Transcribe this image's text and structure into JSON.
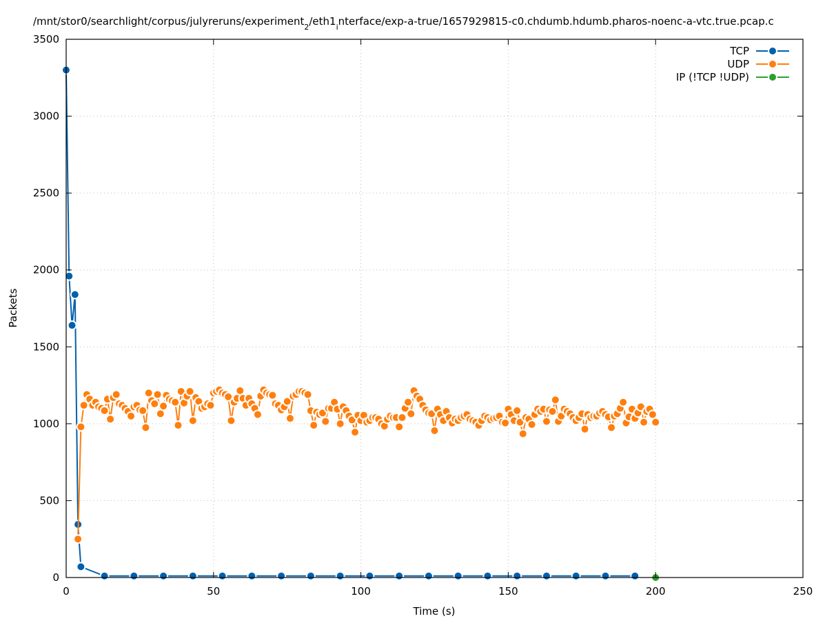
{
  "chart_data": {
    "type": "line",
    "title": "/mnt/stor0/searchlight/corpus/julyreruns/experiment_2/eth1_interface/exp-a-true/1657929815-c0.chdumb.hdumb.pharos-noenc-a-vtc.true.pcap.c",
    "xlabel": "Time (s)",
    "ylabel": "Packets",
    "xlim": [
      0,
      250
    ],
    "ylim": [
      0,
      3500
    ],
    "xticks": [
      0,
      50,
      100,
      150,
      200,
      250
    ],
    "yticks": [
      0,
      500,
      1000,
      1500,
      2000,
      2500,
      3000,
      3500
    ],
    "grid": true,
    "legend_position": "top-right",
    "series": [
      {
        "name": "TCP",
        "color": "#0060ad",
        "x": [
          0,
          1,
          2,
          3,
          4,
          5,
          13,
          23,
          33,
          43,
          53,
          63,
          73,
          83,
          93,
          103,
          113,
          123,
          133,
          143,
          153,
          163,
          173,
          183,
          193
        ],
        "y": [
          3300,
          1960,
          1640,
          1840,
          345,
          70,
          10,
          10,
          10,
          10,
          10,
          10,
          10,
          10,
          10,
          10,
          10,
          10,
          10,
          10,
          10,
          10,
          10,
          10,
          10
        ]
      },
      {
        "name": "UDP",
        "color": "#ff7f0e",
        "x_start": 4,
        "x_step": 1,
        "y": [
          250,
          980,
          1120,
          1190,
          1160,
          1120,
          1140,
          1110,
          1100,
          1085,
          1160,
          1030,
          1170,
          1190,
          1130,
          1120,
          1100,
          1080,
          1050,
          1110,
          1120,
          1090,
          1085,
          975,
          1200,
          1150,
          1130,
          1190,
          1065,
          1115,
          1185,
          1160,
          1150,
          1140,
          990,
          1210,
          1135,
          1180,
          1210,
          1020,
          1170,
          1145,
          1100,
          1110,
          1130,
          1120,
          1200,
          1210,
          1220,
          1200,
          1190,
          1175,
          1020,
          1140,
          1165,
          1215,
          1165,
          1120,
          1165,
          1130,
          1100,
          1060,
          1180,
          1220,
          1200,
          1190,
          1185,
          1130,
          1120,
          1090,
          1110,
          1145,
          1035,
          1180,
          1190,
          1210,
          1210,
          1200,
          1190,
          1085,
          990,
          1075,
          1060,
          1070,
          1015,
          1100,
          1100,
          1140,
          1095,
          1000,
          1110,
          1085,
          1050,
          1025,
          945,
          1055,
          1020,
          1055,
          1010,
          1020,
          1040,
          1040,
          1030,
          1000,
          985,
          1030,
          1050,
          1040,
          1040,
          980,
          1040,
          1100,
          1140,
          1065,
          1215,
          1180,
          1160,
          1120,
          1090,
          1070,
          1065,
          955,
          1095,
          1060,
          1020,
          1080,
          1040,
          1005,
          1030,
          1020,
          1040,
          1050,
          1060,
          1030,
          1020,
          1010,
          990,
          1020,
          1050,
          1040,
          1025,
          1035,
          1040,
          1050,
          1010,
          1005,
          1095,
          1060,
          1020,
          1085,
          1010,
          935,
          1040,
          1030,
          995,
          1060,
          1095,
          1080,
          1095,
          1015,
          1090,
          1080,
          1155,
          1015,
          1050,
          1095,
          1080,
          1065,
          1040,
          1020,
          1040,
          1065,
          965,
          1060,
          1040,
          1050,
          1050,
          1070,
          1080,
          1060,
          1045,
          975,
          1050,
          1065,
          1100,
          1140,
          1005,
          1045,
          1095,
          1035,
          1070,
          1110,
          1010,
          1080,
          1095,
          1060,
          1010
        ]
      },
      {
        "name": "IP (!TCP  !UDP)",
        "color": "#2ca02c",
        "x": [
          200
        ],
        "y": [
          0
        ]
      }
    ]
  }
}
